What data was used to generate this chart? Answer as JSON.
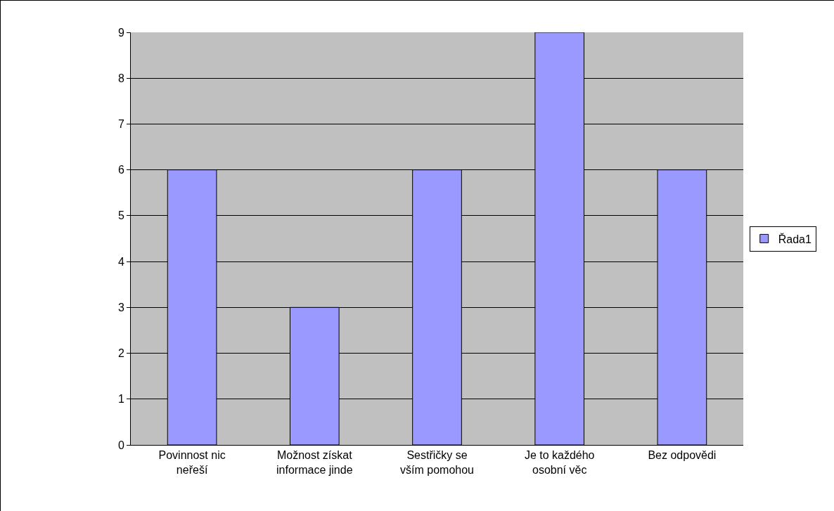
{
  "chart_data": {
    "type": "bar",
    "categories": [
      "Povinnost nic neřeší",
      "Možnost získat informace jinde",
      "Sestřičky se vším pomohou",
      "Je to každého osobní věc",
      "Bez odpovědi"
    ],
    "series": [
      {
        "name": "Řada1",
        "color": "#9999ff",
        "values": [
          6,
          3,
          6,
          9,
          6
        ]
      }
    ],
    "ylim": [
      0,
      9
    ],
    "yticks": [
      0,
      1,
      2,
      3,
      4,
      5,
      6,
      7,
      8,
      9
    ],
    "grid": "y",
    "legend": "right"
  }
}
